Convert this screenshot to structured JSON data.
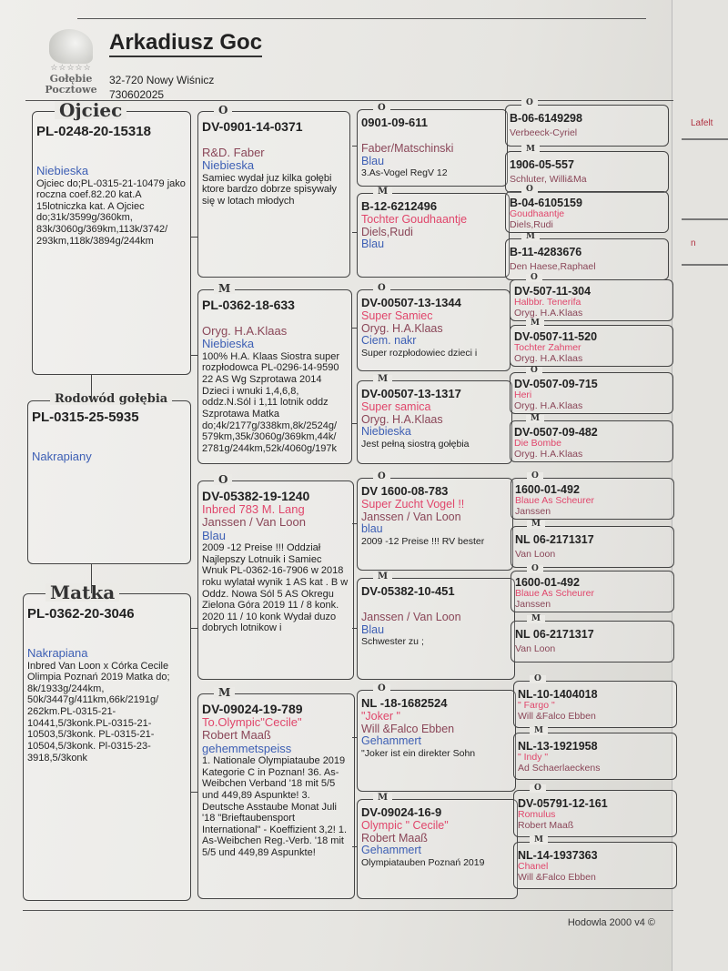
{
  "header": {
    "owner": "Arkadiusz Goc",
    "address": "32-720 Nowy Wiśnicz",
    "phone": "730602025",
    "logo_text": [
      "☆☆☆☆☆",
      "Gołębie",
      "Pocztowe"
    ]
  },
  "colors": {
    "name": "#e0466b",
    "owner": "#8a4658",
    "color": "#3d5fb4"
  },
  "subject": {
    "label": "Rodowód gołębia",
    "ring": "PL-0315-25-5935",
    "name": "",
    "owner": "",
    "color": "Nakrapiany",
    "notes": ""
  },
  "parents": [
    {
      "label": "Ojciec",
      "ring": "PL-0248-20-15318",
      "name": "",
      "owner": "",
      "color": "Niebieska",
      "notes": "Ojciec do;PL-0315-21-10479 jako roczna coef.82.20 kat.A 15lotniczka kat. A Ojciec do;31k/3599g/360km, 83k/3060g/369km,113k/3742/ 293km,118k/3894g/244km"
    },
    {
      "label": "Matka",
      "ring": "PL-0362-20-3046",
      "name": "",
      "owner": "",
      "color": "Nakrapiana",
      "notes": "Inbred Van Loon x Córka Cecile Olimpia Poznań 2019 Matka do; 8k/1933g/244km, 50k/3447g/411km,66k/2191g/ 262km.PL-0315-21- 10441,5/3konk.PL-0315-21- 10503,5/3konk. PL-0315-21- 10504,5/3konk. Pl-0315-23- 3918,5/3konk"
    }
  ],
  "grandparents": [
    {
      "label": "O",
      "ring": "DV-0901-14-0371",
      "name": "",
      "owner": "R&D. Faber",
      "color": "Niebieska",
      "notes": "Samiec wydał juz kilka gołębi ktore bardzo dobrze spisywały się w lotach młodych"
    },
    {
      "label": "M",
      "ring": "PL-0362-18-633",
      "name": "",
      "owner": "Oryg. H.A.Klaas",
      "color": "Niebieska",
      "notes": "100% H.A. Klaas Siostra super rozpłodowca PL-0296-14-9590 22 AS Wg Szprotawa 2014  Dzieci i wnuki 1,4,6,8, oddz.N.Sól i 1,11 lotnik oddz Szprotawa Matka do;4k/2177g/338km,8k/2524g/ 579km,35k/3060g/369km,44k/ 2781g/244km,52k/4060g/197k"
    },
    {
      "label": "O",
      "ring": "DV-05382-19-1240",
      "name": "Inbred 783  M. Lang",
      "owner": "Janssen / Van Loon",
      "color": "Blau",
      "notes": "2009 -12 Preise !!!  Oddział Najlepszy Lotnuik i Samiec Wnuk PL-0362-16-7906 w 2018 roku wylatał wynik 1 AS kat . B w Oddz. Nowa Sól 5 AS Okregu Zielona Góra 2019   11 / 8 konk. 2020   11 / 10 konk Wydał duzo dobrych lotnikow i"
    },
    {
      "label": "M",
      "ring": "DV-09024-19-789",
      "name": "To.Olympic\"Cecile\"",
      "owner": "Robert Maaß",
      "color": "gehemmetspeiss",
      "notes": "1. Nationale Olympiataube 2019 Kategorie C  in Poznan! 36. As-Weibchen Verband '18 mit 5/5 und 449,89 Aspunkte! 3. Deutsche Asstaube Monat Juli '18 \"Brieftaubensport International\" - Koeffizient 3,2! 1. As-Weibchen Reg.-Verb. '18 mit 5/5 und 449,89 Aspunkte!"
    }
  ],
  "great_grandparents": [
    {
      "label": "O",
      "ring": "0901-09-611",
      "name": "",
      "owner": "Faber/Matschinski",
      "color": "Blau",
      "notes": "3.As-Vogel RegV  12"
    },
    {
      "label": "M",
      "ring": "B-12-6212496",
      "name": "Tochter Goudhaantje",
      "owner": "Diels,Rudi",
      "color": "Blau",
      "notes": ""
    },
    {
      "label": "O",
      "ring": "DV-00507-13-1344",
      "name": "Super Samiec",
      "owner": "Oryg. H.A.Klaas",
      "color": "Ciem. nakr",
      "notes": "Super rozpłodowiec dzieci i"
    },
    {
      "label": "M",
      "ring": "DV-00507-13-1317",
      "name": "Super samica",
      "owner": "Oryg. H.A.Klaas",
      "color": "Niebieska",
      "notes": "Jest pełną siostrą gołębia"
    },
    {
      "label": "O",
      "ring": "DV 1600-08-783",
      "name": "Super Zucht Vogel !!",
      "owner": "Janssen / Van Loon",
      "color": "blau",
      "notes": "2009 -12 Preise !!!  RV bester"
    },
    {
      "label": "M",
      "ring": "DV-05382-10-451",
      "name": "",
      "owner": "Janssen / Van Loon",
      "color": "Blau",
      "notes": "Schwester zu ;"
    },
    {
      "label": "O",
      "ring": "NL -18-1682524",
      "name": "\"Joker \"",
      "owner": "Will &Falco Ebben",
      "color": "Gehammert",
      "notes": "\"Joker ist ein direkter Sohn"
    },
    {
      "label": "M",
      "ring": "DV-09024-16-9",
      "name": "Olympic  \" Cecile\"",
      "owner": "Robert Maaß",
      "color": "Gehammert",
      "notes": "Olympiatauben Poznań 2019"
    }
  ],
  "gg_grandparents": [
    {
      "label": "O",
      "ring": "B-06-6149298",
      "name": "",
      "owner": "Verbeeck-Cyriel"
    },
    {
      "label": "M",
      "ring": "1906-05-557",
      "name": "",
      "owner": "Schluter, Willi&Ma"
    },
    {
      "label": "O",
      "ring": "B-04-6105159",
      "name": "Goudhaantje",
      "owner": "Diels,Rudi"
    },
    {
      "label": "M",
      "ring": "B-11-4283676",
      "name": "",
      "owner": "Den Haese,Raphael"
    },
    {
      "label": "O",
      "ring": "DV-507-11-304",
      "name": "Halbbr. Tenerifa",
      "owner": "Oryg. H.A.Klaas"
    },
    {
      "label": "M",
      "ring": "DV-0507-11-520",
      "name": "Tochter Zahmer",
      "owner": "Oryg. H.A.Klaas"
    },
    {
      "label": "O",
      "ring": "DV-0507-09-715",
      "name": "Heri",
      "owner": "Oryg. H.A.Klaas"
    },
    {
      "label": "M",
      "ring": "DV-0507-09-482",
      "name": "Die Bombe",
      "owner": "Oryg. H.A.Klaas"
    },
    {
      "label": "O",
      "ring": "1600-01-492",
      "name": "Blaue As Scheurer",
      "owner": "Janssen"
    },
    {
      "label": "M",
      "ring": "NL 06-2171317",
      "name": "",
      "owner": "Van Loon"
    },
    {
      "label": "O",
      "ring": "1600-01-492",
      "name": "Blaue As Scheurer",
      "owner": "Janssen"
    },
    {
      "label": "M",
      "ring": "NL 06-2171317",
      "name": "",
      "owner": "Van Loon"
    },
    {
      "label": "O",
      "ring": "NL-10-1404018",
      "name": "\" Fargo \"",
      "owner": "Will &Falco Ebben"
    },
    {
      "label": "M",
      "ring": "NL-13-1921958",
      "name": "\" Indy \"",
      "owner": "Ad Schaerlaeckens"
    },
    {
      "label": "O",
      "ring": "DV-05791-12-161",
      "name": "Romulus",
      "owner": "Robert Maaß"
    },
    {
      "label": "M",
      "ring": "NL-14-1937363",
      "name": "Chanel",
      "owner": "Will &Falco Ebben"
    }
  ],
  "next_sheet": {
    "fragments": [
      "Lafelt",
      "n"
    ]
  },
  "footer": {
    "software": "Hodowla 2000 v4 ©"
  }
}
